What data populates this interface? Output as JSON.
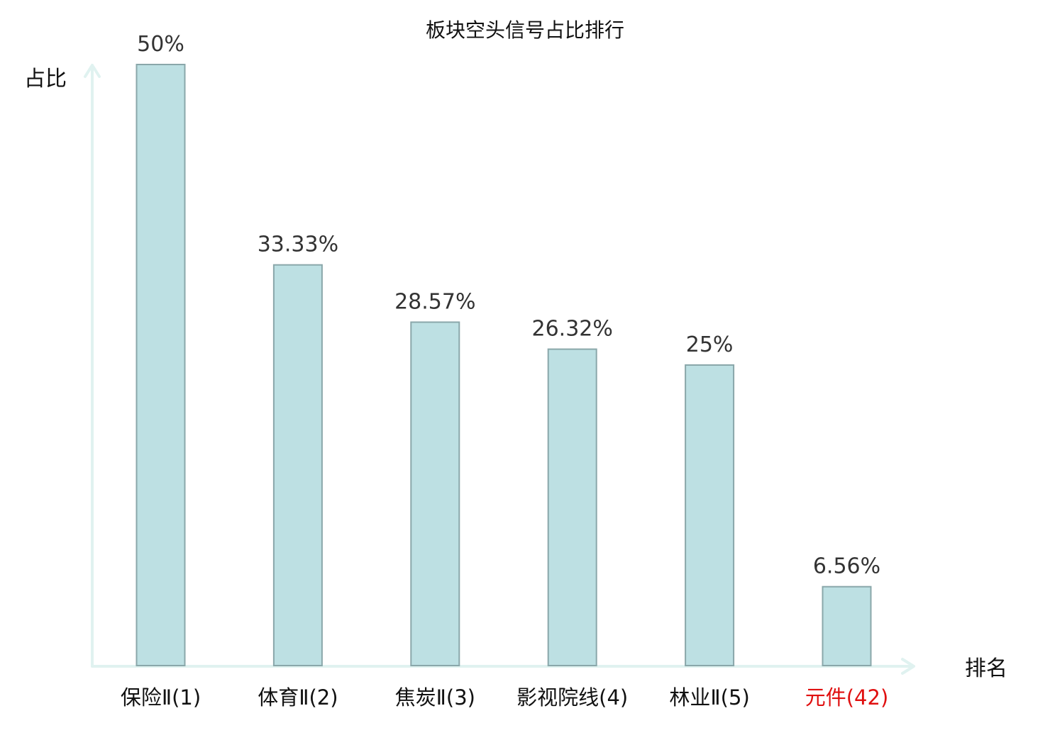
{
  "chart_data": {
    "type": "bar",
    "title": "板块空头信号占比排行",
    "ylabel": "占比",
    "xlabel": "排名",
    "ylim": [
      0,
      50
    ],
    "grid": false,
    "categories": [
      "保险Ⅱ(1)",
      "体育Ⅱ(2)",
      "焦炭Ⅱ(3)",
      "影视院线(4)",
      "林业Ⅱ(5)",
      "元件(42)"
    ],
    "values": [
      50,
      33.33,
      28.57,
      26.32,
      25,
      6.56
    ],
    "value_labels": [
      "50%",
      "33.33%",
      "28.57%",
      "26.32%",
      "25%",
      "6.56%"
    ],
    "highlight_index": 5,
    "colors": {
      "bar_fill": "#bde0e3",
      "bar_stroke": "#8aa7aa",
      "axis": "#e0f2f0",
      "highlight_text": "#e01010"
    }
  }
}
